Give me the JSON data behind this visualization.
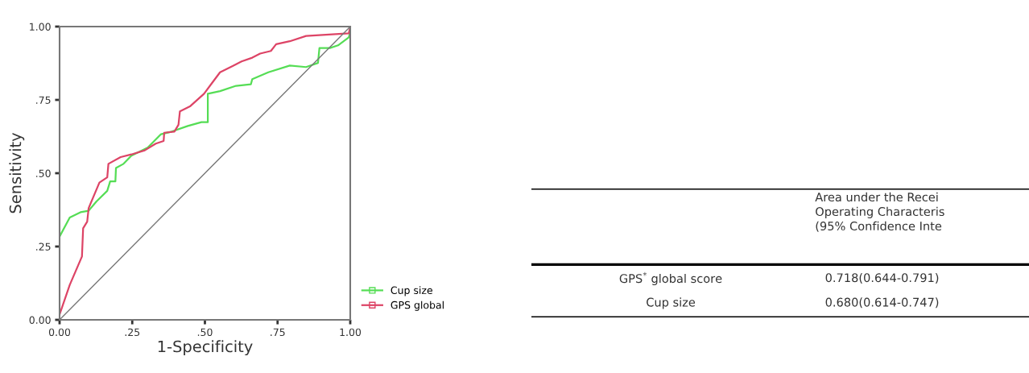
{
  "chart_data": [
    {
      "type": "line",
      "xlabel": "1-Specificity",
      "ylabel": "Sensitivity",
      "xlim": [
        0,
        1
      ],
      "ylim": [
        0,
        1
      ],
      "xticks": [
        {
          "value": 0,
          "label": "0.00"
        },
        {
          "value": 0.25,
          "label": ".25"
        },
        {
          "value": 0.5,
          "label": ".50"
        },
        {
          "value": 0.75,
          "label": ".75"
        },
        {
          "value": 1,
          "label": "1.00"
        }
      ],
      "yticks": [
        {
          "value": 0,
          "label": "0.00"
        },
        {
          "value": 0.25,
          "label": ".25"
        },
        {
          "value": 0.5,
          "label": ".50"
        },
        {
          "value": 0.75,
          "label": ".75"
        },
        {
          "value": 1,
          "label": "1.00"
        }
      ],
      "grid": false,
      "legend": "bottom right",
      "marker": "none",
      "line_style": "solid",
      "series": [
        {
          "name": "Cup size",
          "color": "#55dd55",
          "x": [
            0,
            0.035,
            0.072,
            0.1,
            0.127,
            0.164,
            0.174,
            0.192,
            0.194,
            0.22,
            0.247,
            0.303,
            0.349,
            0.386,
            0.441,
            0.488,
            0.51,
            0.51,
            0.552,
            0.607,
            0.658,
            0.663,
            0.718,
            0.792,
            0.848,
            0.889,
            0.894,
            0.93,
            0.958,
            0.995,
            1
          ],
          "values": [
            0.284,
            0.349,
            0.367,
            0.372,
            0.404,
            0.44,
            0.472,
            0.472,
            0.518,
            0.532,
            0.56,
            0.587,
            0.633,
            0.642,
            0.661,
            0.674,
            0.674,
            0.771,
            0.78,
            0.798,
            0.803,
            0.821,
            0.844,
            0.867,
            0.862,
            0.876,
            0.927,
            0.927,
            0.936,
            0.963,
            0.982
          ]
        },
        {
          "name": "GPS global",
          "color": "#dd4466",
          "x": [
            0,
            0.035,
            0.077,
            0.081,
            0.095,
            0.1,
            0.137,
            0.164,
            0.168,
            0.21,
            0.247,
            0.293,
            0.331,
            0.358,
            0.36,
            0.395,
            0.409,
            0.414,
            0.45,
            0.497,
            0.524,
            0.552,
            0.598,
            0.626,
            0.663,
            0.69,
            0.727,
            0.745,
            0.792,
            0.848,
            0.995,
            1
          ],
          "values": [
            0.018,
            0.119,
            0.216,
            0.312,
            0.335,
            0.381,
            0.468,
            0.486,
            0.532,
            0.555,
            0.564,
            0.578,
            0.601,
            0.61,
            0.638,
            0.642,
            0.665,
            0.711,
            0.729,
            0.771,
            0.807,
            0.844,
            0.867,
            0.881,
            0.894,
            0.908,
            0.917,
            0.94,
            0.95,
            0.968,
            0.977,
            1
          ]
        },
        {
          "color": "#777777",
          "x": [
            0,
            1
          ],
          "values": [
            0,
            1
          ]
        }
      ]
    },
    {
      "type": "other",
      "annotations": [
        "Area under the Recei\nOperating Characteris\n(95% Confidence Inte",
        "GPS$^{*}$ global score",
        "0.718(0.644-0.791)",
        "Cup size",
        "0.680(0.614-0.747)"
      ]
    }
  ]
}
